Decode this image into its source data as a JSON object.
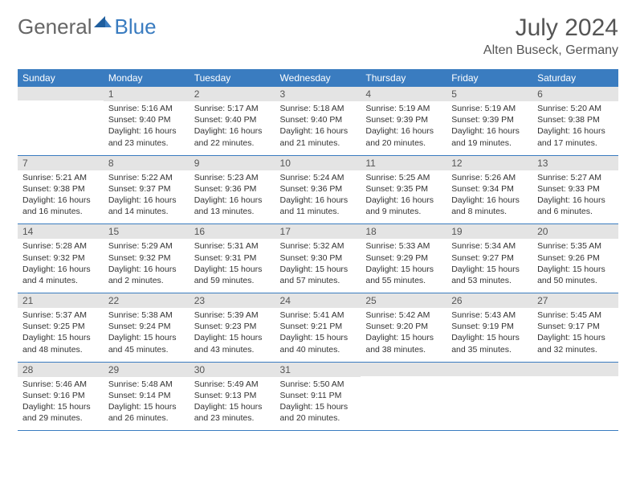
{
  "brand": {
    "part1": "General",
    "part2": "Blue"
  },
  "title": "July 2024",
  "location": "Alten Buseck, Germany",
  "colors": {
    "header_bg": "#3a7cc0",
    "header_text": "#ffffff",
    "daynum_bg": "#e4e4e4",
    "text": "#333333",
    "rule": "#3a7cc0"
  },
  "fonts": {
    "title_size_pt": 22,
    "location_size_pt": 12,
    "dayhdr_size_pt": 9,
    "cell_size_pt": 8
  },
  "day_headers": [
    "Sunday",
    "Monday",
    "Tuesday",
    "Wednesday",
    "Thursday",
    "Friday",
    "Saturday"
  ],
  "weeks": [
    [
      {
        "n": "",
        "sunrise": "",
        "sunset": "",
        "daylight": ""
      },
      {
        "n": "1",
        "sunrise": "Sunrise: 5:16 AM",
        "sunset": "Sunset: 9:40 PM",
        "daylight": "Daylight: 16 hours and 23 minutes."
      },
      {
        "n": "2",
        "sunrise": "Sunrise: 5:17 AM",
        "sunset": "Sunset: 9:40 PM",
        "daylight": "Daylight: 16 hours and 22 minutes."
      },
      {
        "n": "3",
        "sunrise": "Sunrise: 5:18 AM",
        "sunset": "Sunset: 9:40 PM",
        "daylight": "Daylight: 16 hours and 21 minutes."
      },
      {
        "n": "4",
        "sunrise": "Sunrise: 5:19 AM",
        "sunset": "Sunset: 9:39 PM",
        "daylight": "Daylight: 16 hours and 20 minutes."
      },
      {
        "n": "5",
        "sunrise": "Sunrise: 5:19 AM",
        "sunset": "Sunset: 9:39 PM",
        "daylight": "Daylight: 16 hours and 19 minutes."
      },
      {
        "n": "6",
        "sunrise": "Sunrise: 5:20 AM",
        "sunset": "Sunset: 9:38 PM",
        "daylight": "Daylight: 16 hours and 17 minutes."
      }
    ],
    [
      {
        "n": "7",
        "sunrise": "Sunrise: 5:21 AM",
        "sunset": "Sunset: 9:38 PM",
        "daylight": "Daylight: 16 hours and 16 minutes."
      },
      {
        "n": "8",
        "sunrise": "Sunrise: 5:22 AM",
        "sunset": "Sunset: 9:37 PM",
        "daylight": "Daylight: 16 hours and 14 minutes."
      },
      {
        "n": "9",
        "sunrise": "Sunrise: 5:23 AM",
        "sunset": "Sunset: 9:36 PM",
        "daylight": "Daylight: 16 hours and 13 minutes."
      },
      {
        "n": "10",
        "sunrise": "Sunrise: 5:24 AM",
        "sunset": "Sunset: 9:36 PM",
        "daylight": "Daylight: 16 hours and 11 minutes."
      },
      {
        "n": "11",
        "sunrise": "Sunrise: 5:25 AM",
        "sunset": "Sunset: 9:35 PM",
        "daylight": "Daylight: 16 hours and 9 minutes."
      },
      {
        "n": "12",
        "sunrise": "Sunrise: 5:26 AM",
        "sunset": "Sunset: 9:34 PM",
        "daylight": "Daylight: 16 hours and 8 minutes."
      },
      {
        "n": "13",
        "sunrise": "Sunrise: 5:27 AM",
        "sunset": "Sunset: 9:33 PM",
        "daylight": "Daylight: 16 hours and 6 minutes."
      }
    ],
    [
      {
        "n": "14",
        "sunrise": "Sunrise: 5:28 AM",
        "sunset": "Sunset: 9:32 PM",
        "daylight": "Daylight: 16 hours and 4 minutes."
      },
      {
        "n": "15",
        "sunrise": "Sunrise: 5:29 AM",
        "sunset": "Sunset: 9:32 PM",
        "daylight": "Daylight: 16 hours and 2 minutes."
      },
      {
        "n": "16",
        "sunrise": "Sunrise: 5:31 AM",
        "sunset": "Sunset: 9:31 PM",
        "daylight": "Daylight: 15 hours and 59 minutes."
      },
      {
        "n": "17",
        "sunrise": "Sunrise: 5:32 AM",
        "sunset": "Sunset: 9:30 PM",
        "daylight": "Daylight: 15 hours and 57 minutes."
      },
      {
        "n": "18",
        "sunrise": "Sunrise: 5:33 AM",
        "sunset": "Sunset: 9:29 PM",
        "daylight": "Daylight: 15 hours and 55 minutes."
      },
      {
        "n": "19",
        "sunrise": "Sunrise: 5:34 AM",
        "sunset": "Sunset: 9:27 PM",
        "daylight": "Daylight: 15 hours and 53 minutes."
      },
      {
        "n": "20",
        "sunrise": "Sunrise: 5:35 AM",
        "sunset": "Sunset: 9:26 PM",
        "daylight": "Daylight: 15 hours and 50 minutes."
      }
    ],
    [
      {
        "n": "21",
        "sunrise": "Sunrise: 5:37 AM",
        "sunset": "Sunset: 9:25 PM",
        "daylight": "Daylight: 15 hours and 48 minutes."
      },
      {
        "n": "22",
        "sunrise": "Sunrise: 5:38 AM",
        "sunset": "Sunset: 9:24 PM",
        "daylight": "Daylight: 15 hours and 45 minutes."
      },
      {
        "n": "23",
        "sunrise": "Sunrise: 5:39 AM",
        "sunset": "Sunset: 9:23 PM",
        "daylight": "Daylight: 15 hours and 43 minutes."
      },
      {
        "n": "24",
        "sunrise": "Sunrise: 5:41 AM",
        "sunset": "Sunset: 9:21 PM",
        "daylight": "Daylight: 15 hours and 40 minutes."
      },
      {
        "n": "25",
        "sunrise": "Sunrise: 5:42 AM",
        "sunset": "Sunset: 9:20 PM",
        "daylight": "Daylight: 15 hours and 38 minutes."
      },
      {
        "n": "26",
        "sunrise": "Sunrise: 5:43 AM",
        "sunset": "Sunset: 9:19 PM",
        "daylight": "Daylight: 15 hours and 35 minutes."
      },
      {
        "n": "27",
        "sunrise": "Sunrise: 5:45 AM",
        "sunset": "Sunset: 9:17 PM",
        "daylight": "Daylight: 15 hours and 32 minutes."
      }
    ],
    [
      {
        "n": "28",
        "sunrise": "Sunrise: 5:46 AM",
        "sunset": "Sunset: 9:16 PM",
        "daylight": "Daylight: 15 hours and 29 minutes."
      },
      {
        "n": "29",
        "sunrise": "Sunrise: 5:48 AM",
        "sunset": "Sunset: 9:14 PM",
        "daylight": "Daylight: 15 hours and 26 minutes."
      },
      {
        "n": "30",
        "sunrise": "Sunrise: 5:49 AM",
        "sunset": "Sunset: 9:13 PM",
        "daylight": "Daylight: 15 hours and 23 minutes."
      },
      {
        "n": "31",
        "sunrise": "Sunrise: 5:50 AM",
        "sunset": "Sunset: 9:11 PM",
        "daylight": "Daylight: 15 hours and 20 minutes."
      },
      {
        "n": "",
        "sunrise": "",
        "sunset": "",
        "daylight": ""
      },
      {
        "n": "",
        "sunrise": "",
        "sunset": "",
        "daylight": ""
      },
      {
        "n": "",
        "sunrise": "",
        "sunset": "",
        "daylight": ""
      }
    ]
  ]
}
